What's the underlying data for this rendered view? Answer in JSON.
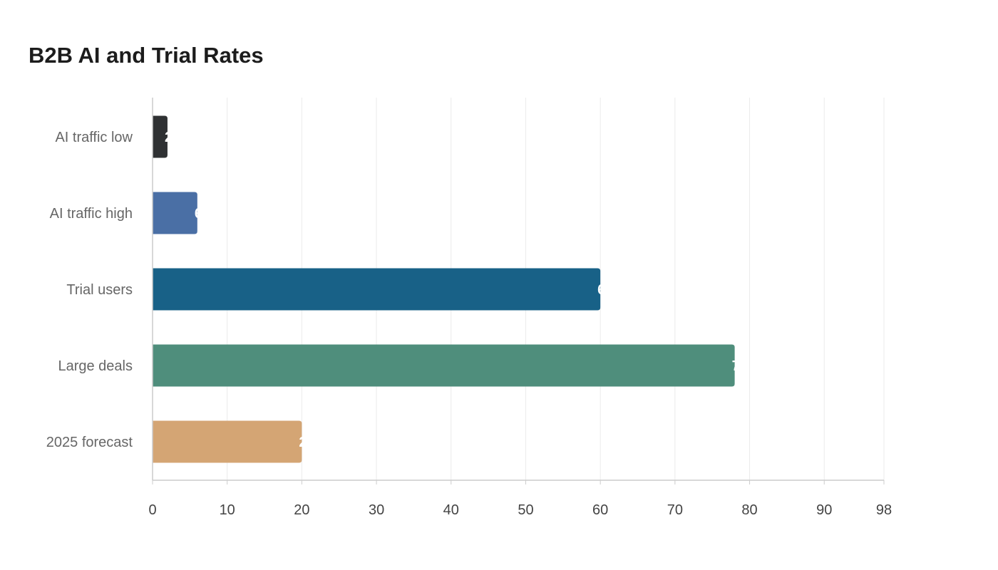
{
  "chart_data": {
    "type": "bar",
    "orientation": "horizontal",
    "title": "B2B AI and Trial Rates",
    "xlabel": "",
    "ylabel": "",
    "categories": [
      "AI traffic low",
      "AI traffic high",
      "Trial users",
      "Large deals",
      "2025 forecast"
    ],
    "values": [
      2,
      6,
      60,
      78,
      20
    ],
    "colors": [
      "#2f3133",
      "#4a6fa5",
      "#186187",
      "#4f8e7c",
      "#d4a574"
    ],
    "xlim": [
      0,
      98
    ],
    "xticks": [
      0,
      10,
      20,
      30,
      40,
      50,
      60,
      70,
      80,
      90,
      98
    ],
    "grid": true,
    "legend": "none"
  }
}
